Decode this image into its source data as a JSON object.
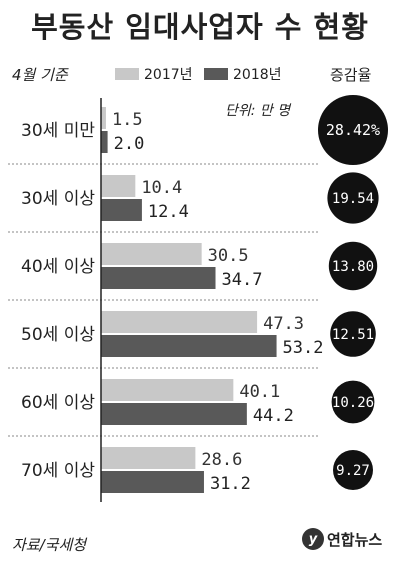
{
  "title": "부동산 임대사업자 수 현황",
  "period_note": "4월 기준",
  "unit_note": "단위: 만 명",
  "growth_header": "증감율",
  "source": "자료/국세청",
  "logo_text": "연합뉴스",
  "colors": {
    "series_2017": "#c8c8c8",
    "series_2018": "#595959",
    "badge": "#111111"
  },
  "chart_data": {
    "type": "bar",
    "orientation": "horizontal",
    "title": "부동산 임대사업자 수 현황",
    "categories": [
      "30세 미만",
      "30세 이상",
      "40세 이상",
      "50세 이상",
      "60세 이상",
      "70세 이상"
    ],
    "series": [
      {
        "name": "2017년",
        "values": [
          1.5,
          10.4,
          30.5,
          47.3,
          40.1,
          28.6
        ]
      },
      {
        "name": "2018년",
        "values": [
          2.0,
          12.4,
          34.7,
          53.2,
          44.2,
          31.2
        ]
      }
    ],
    "value_labels": {
      "2017년": [
        "1.5",
        "10.4",
        "30.5",
        "47.3",
        "40.1",
        "28.6"
      ],
      "2018년": [
        "2.0",
        "12.4",
        "34.7",
        "53.2",
        "44.2",
        "31.2"
      ]
    },
    "growth_rates": [
      "28.42%",
      "19.54",
      "13.80",
      "12.51",
      "10.26",
      "9.27"
    ],
    "unit": "만 명",
    "legend_position": "top"
  }
}
